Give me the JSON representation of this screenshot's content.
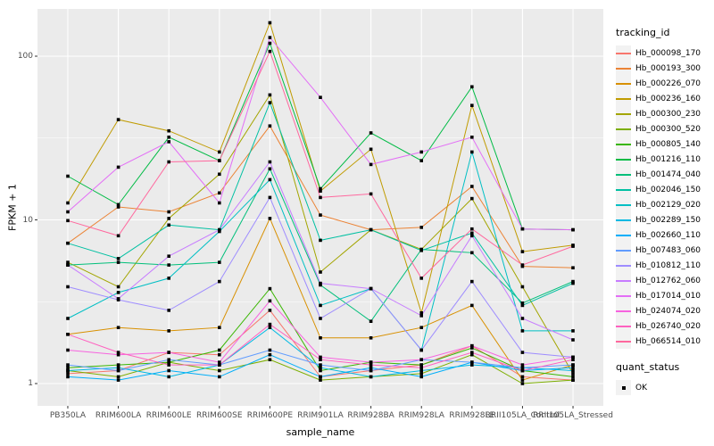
{
  "figure": {
    "x_axis_title": "sample_name",
    "y_axis_title": "FPKM + 1",
    "legend_title": "tracking_id",
    "quant_legend_title": "quant_status",
    "quant_legend_value": "OK"
  },
  "chart_data": {
    "type": "line",
    "title": "",
    "xlabel": "sample_name",
    "ylabel": "FPKM + 1",
    "y_scale": "log10",
    "ylim": [
      1,
      200
    ],
    "y_major_ticks": [
      1,
      10,
      100
    ],
    "y_minor_gridlines": [
      3.1623,
      31.623
    ],
    "grid": "on",
    "legend_position": "right",
    "panel_background": "#EBEBEB",
    "gridline_color": "#FFFFFF",
    "point_marker": "black-square",
    "point_legend_name": "quant_status",
    "point_legend_value": "OK",
    "categories": [
      "PB350LA",
      "RRIM600LA",
      "RRIM600LE",
      "RRIM600SE",
      "RRIM600PE",
      "RRIM901LA",
      "RRIM928BA",
      "RRIM928LA",
      "RRIM928LE",
      "RRII105LA_Control",
      "RRII105LA_Stressed"
    ],
    "series": [
      {
        "name": "Hb_000098_170",
        "color": "#F8766D",
        "values": [
          1.15,
          1.2,
          1.55,
          1.5,
          2.8,
          1.1,
          1.2,
          1.3,
          1.7,
          1.1,
          1.05
        ]
      },
      {
        "name": "Hb_000193_300",
        "color": "#EB8335",
        "values": [
          7.2,
          12,
          11.2,
          14.6,
          37.5,
          10.7,
          8.7,
          9.0,
          16,
          5.2,
          5.1
        ]
      },
      {
        "name": "Hb_000226_070",
        "color": "#D89000",
        "values": [
          2.0,
          2.2,
          2.1,
          2.2,
          10.2,
          1.9,
          1.9,
          2.2,
          3.0,
          1.05,
          1.3
        ]
      },
      {
        "name": "Hb_000236_160",
        "color": "#C09B00",
        "values": [
          12.7,
          41,
          35,
          26,
          160,
          15,
          27,
          2.7,
          50,
          6.4,
          7.0
        ]
      },
      {
        "name": "Hb_000300_230",
        "color": "#A3A500",
        "values": [
          5.5,
          3.9,
          10.2,
          19,
          58,
          4.8,
          8.7,
          6.6,
          13.5,
          3.9,
          1.15
        ]
      },
      {
        "name": "Hb_000300_520",
        "color": "#7CAE00",
        "values": [
          1.2,
          1.1,
          1.35,
          1.2,
          1.4,
          1.05,
          1.1,
          1.15,
          1.5,
          1.0,
          1.05
        ]
      },
      {
        "name": "Hb_000805_140",
        "color": "#39B600",
        "values": [
          1.25,
          1.3,
          1.35,
          1.6,
          3.8,
          1.2,
          1.35,
          1.3,
          1.65,
          1.2,
          1.1
        ]
      },
      {
        "name": "Hb_001216_110",
        "color": "#00BB45",
        "values": [
          18.5,
          12.4,
          32,
          23,
          120,
          15.5,
          34,
          23,
          65,
          8.8,
          8.7
        ]
      },
      {
        "name": "Hb_001474_040",
        "color": "#00BF7A",
        "values": [
          5.3,
          5.5,
          5.3,
          5.5,
          20.5,
          4.0,
          2.4,
          6.6,
          6.3,
          3.1,
          4.2
        ]
      },
      {
        "name": "Hb_002046_150",
        "color": "#00C0A2",
        "values": [
          7.2,
          5.8,
          9.3,
          8.7,
          52,
          7.5,
          8.7,
          6.5,
          8.3,
          3.0,
          4.1
        ]
      },
      {
        "name": "Hb_002129_020",
        "color": "#00BFC4",
        "values": [
          2.5,
          3.6,
          4.4,
          8.5,
          17.6,
          3.0,
          3.8,
          1.6,
          26,
          2.1,
          2.1
        ]
      },
      {
        "name": "Hb_002289_150",
        "color": "#00B9E3",
        "values": [
          1.2,
          1.25,
          1.1,
          1.3,
          2.2,
          1.25,
          1.1,
          1.2,
          1.3,
          1.25,
          1.2
        ]
      },
      {
        "name": "Hb_002660_110",
        "color": "#00AEF9",
        "values": [
          1.1,
          1.05,
          1.2,
          1.1,
          1.5,
          1.1,
          1.25,
          1.1,
          1.35,
          1.2,
          1.25
        ]
      },
      {
        "name": "Hb_007483_060",
        "color": "#619CFF",
        "values": [
          1.3,
          1.2,
          1.4,
          1.3,
          1.6,
          1.3,
          1.2,
          1.4,
          1.35,
          1.25,
          1.3
        ]
      },
      {
        "name": "Hb_010812_110",
        "color": "#9E8CFF",
        "values": [
          3.9,
          3.25,
          2.8,
          4.2,
          13.7,
          2.5,
          3.8,
          1.6,
          4.2,
          1.55,
          1.45
        ]
      },
      {
        "name": "Hb_012762_060",
        "color": "#C77CFF",
        "values": [
          5.3,
          3.3,
          6.0,
          8.7,
          22.6,
          4.1,
          3.8,
          2.6,
          8.0,
          2.5,
          1.85
        ]
      },
      {
        "name": "Hb_017014_010",
        "color": "#E36EF6",
        "values": [
          11.2,
          21,
          30,
          12.7,
          130,
          56,
          21.8,
          26,
          32,
          8.8,
          8.7
        ]
      },
      {
        "name": "Hb_024074_020",
        "color": "#F763DF",
        "values": [
          1.6,
          1.5,
          1.55,
          1.35,
          3.2,
          1.45,
          1.35,
          1.4,
          1.7,
          1.3,
          1.45
        ]
      },
      {
        "name": "Hb_026740_020",
        "color": "#FF61C0",
        "values": [
          2.0,
          1.55,
          1.3,
          1.3,
          2.3,
          1.4,
          1.3,
          1.25,
          1.55,
          1.2,
          1.4
        ]
      },
      {
        "name": "Hb_066514_010",
        "color": "#FF689E",
        "values": [
          9.9,
          8.0,
          22.6,
          23,
          107,
          13.7,
          14.4,
          4.4,
          8.8,
          5.3,
          6.9
        ]
      }
    ]
  }
}
